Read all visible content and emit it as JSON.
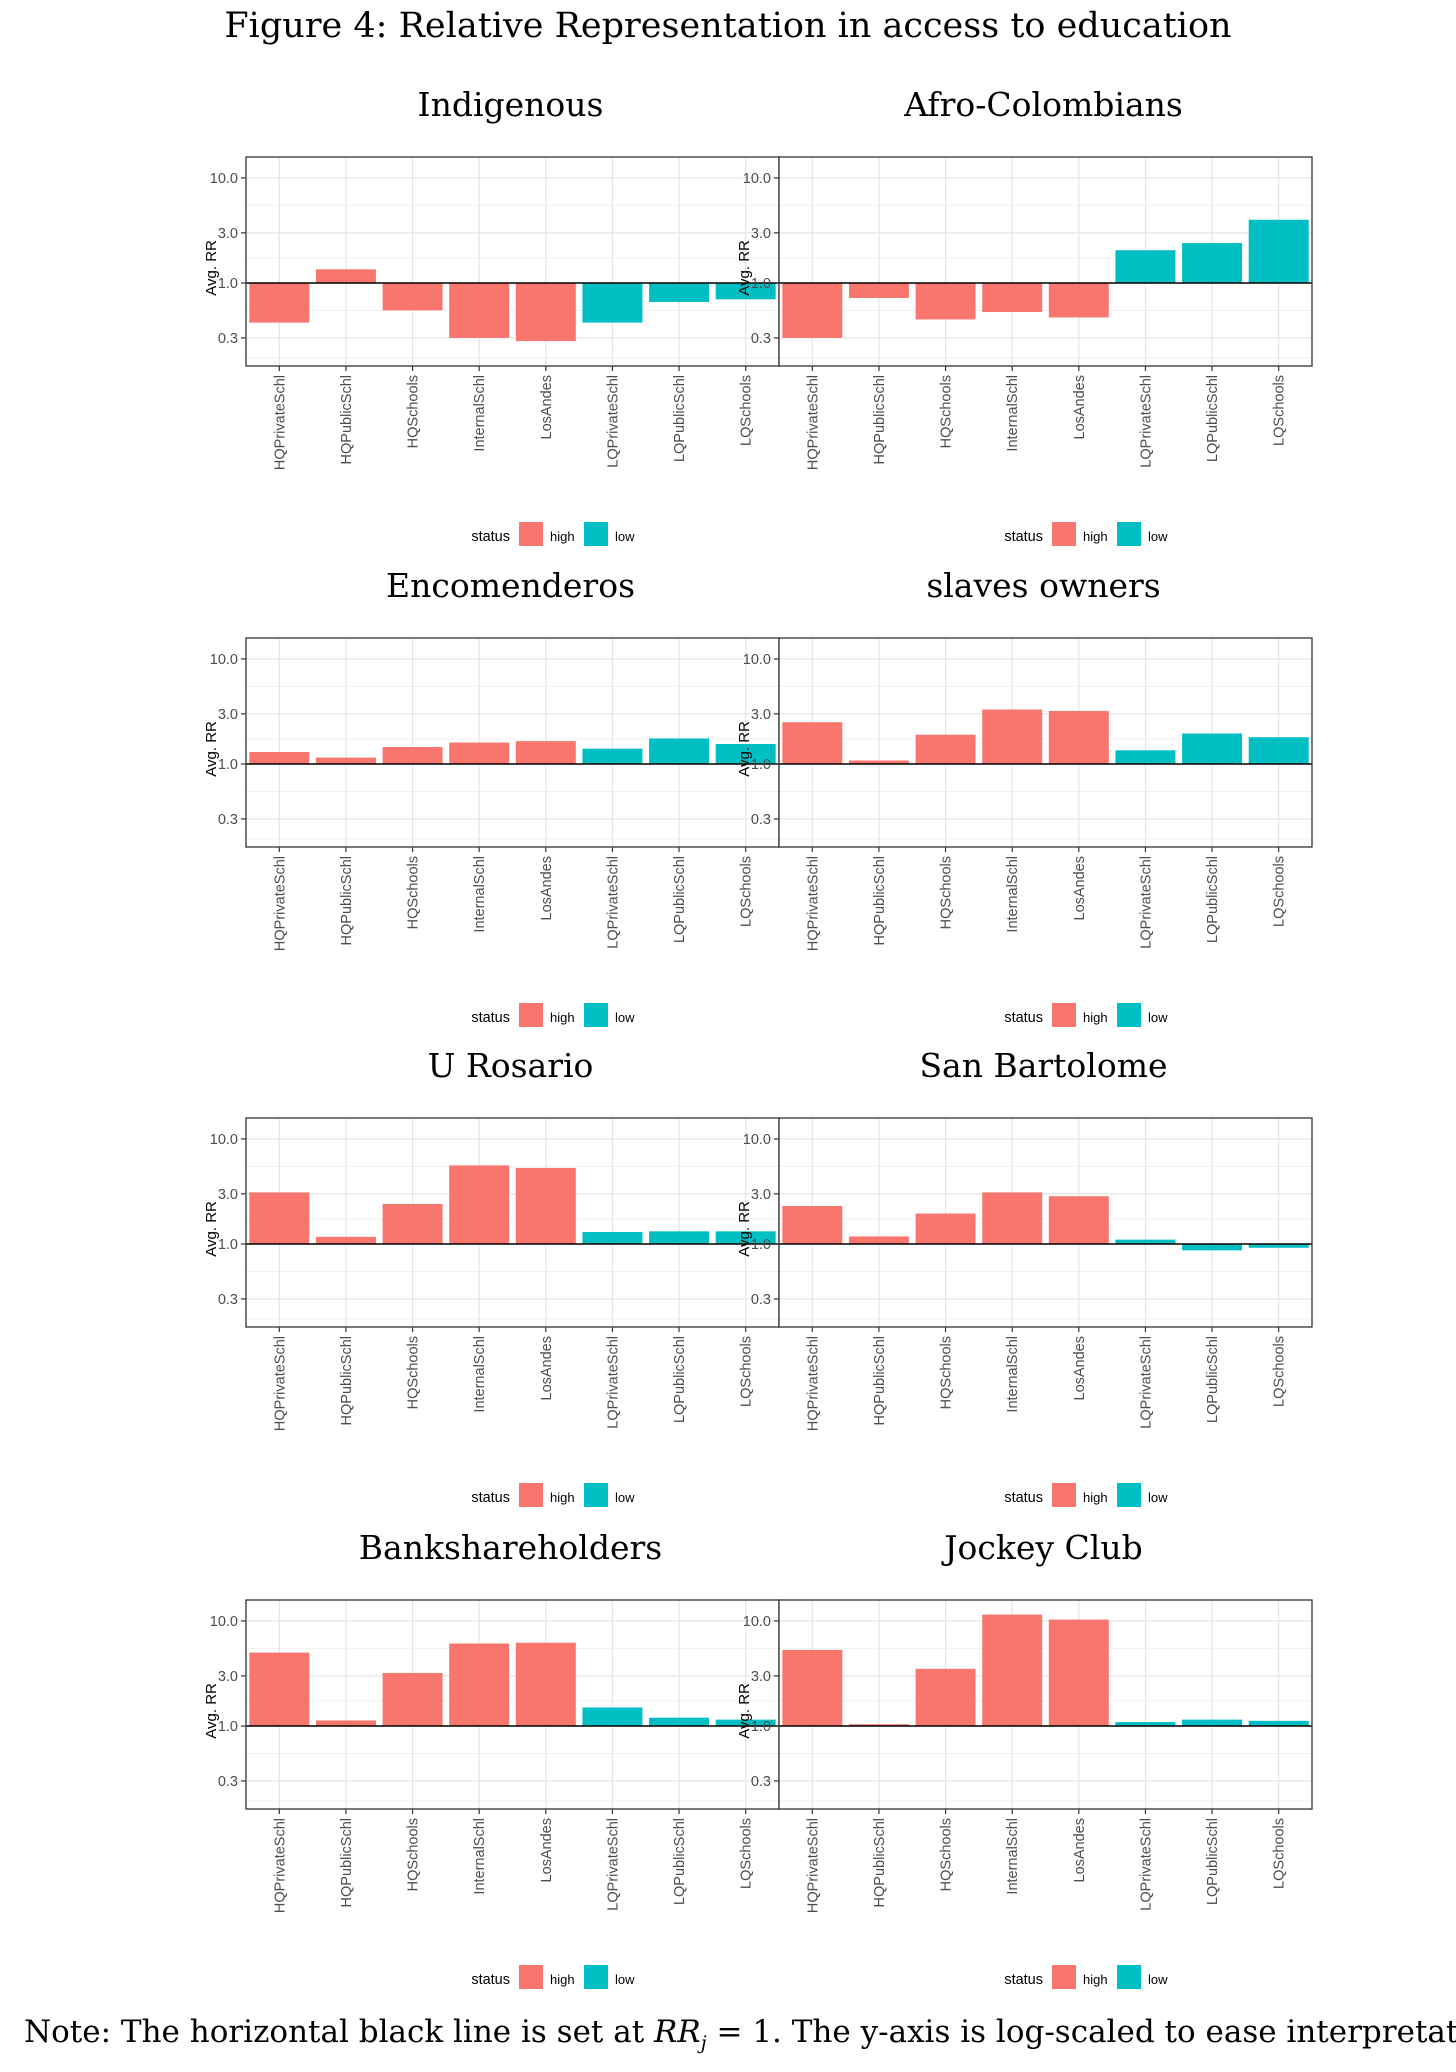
{
  "figure_title": "Figure 4:   Relative Representation in access to education",
  "note": {
    "prefix": "Note: The horizontal black line is set at ",
    "math_var": "RR",
    "math_sub": "j",
    "math_rest": " = 1.",
    "suffix": " The y-axis is log-scaled to ease interpretation."
  },
  "colors": {
    "high": "#F8766D",
    "low": "#00BFC4"
  },
  "chart_data": [
    {
      "type": "bar",
      "title": "Indigenous",
      "ylabel": "Avg. RR",
      "yscale": "log10",
      "ylim": [
        0.2,
        13
      ],
      "yticks": [
        "10.0",
        "3.0",
        "1.0",
        "0.3"
      ],
      "reference_line": 1.0,
      "categories": [
        "HQPrivateSchl",
        "HQPublicSchl",
        "HQSchools",
        "InternalSchl",
        "LosAndes",
        "LQPrivateSchl",
        "LQPublicSchl",
        "LQSchools"
      ],
      "status": [
        "high",
        "high",
        "high",
        "high",
        "high",
        "low",
        "low",
        "low"
      ],
      "values": [
        0.42,
        1.35,
        0.55,
        0.3,
        0.28,
        0.42,
        0.66,
        0.7
      ],
      "legend": {
        "title": "status",
        "entries": [
          "high",
          "low"
        ]
      }
    },
    {
      "type": "bar",
      "title": "Afro-Colombians",
      "ylabel": "Avg. RR",
      "yscale": "log10",
      "ylim": [
        0.2,
        13
      ],
      "yticks": [
        "10.0",
        "3.0",
        "1.0",
        "0.3"
      ],
      "reference_line": 1.0,
      "categories": [
        "HQPrivateSchl",
        "HQPublicSchl",
        "HQSchools",
        "InternalSchl",
        "LosAndes",
        "LQPrivateSchl",
        "LQPublicSchl",
        "LQSchools"
      ],
      "status": [
        "high",
        "high",
        "high",
        "high",
        "high",
        "low",
        "low",
        "low"
      ],
      "values": [
        0.3,
        0.72,
        0.45,
        0.53,
        0.47,
        2.05,
        2.4,
        4.0
      ],
      "legend": {
        "title": "status",
        "entries": [
          "high",
          "low"
        ]
      }
    },
    {
      "type": "bar",
      "title": "Encomenderos",
      "ylabel": "Avg. RR",
      "yscale": "log10",
      "ylim": [
        0.2,
        13
      ],
      "yticks": [
        "10.0",
        "3.0",
        "1.0",
        "0.3"
      ],
      "reference_line": 1.0,
      "categories": [
        "HQPrivateSchl",
        "HQPublicSchl",
        "HQSchools",
        "InternalSchl",
        "LosAndes",
        "LQPrivateSchl",
        "LQPublicSchl",
        "LQSchools"
      ],
      "status": [
        "high",
        "high",
        "high",
        "high",
        "high",
        "low",
        "low",
        "low"
      ],
      "values": [
        1.3,
        1.15,
        1.45,
        1.6,
        1.65,
        1.4,
        1.75,
        1.55
      ],
      "legend": {
        "title": "status",
        "entries": [
          "high",
          "low"
        ]
      }
    },
    {
      "type": "bar",
      "title": "slaves owners",
      "ylabel": "Avg. RR",
      "yscale": "log10",
      "ylim": [
        0.2,
        13
      ],
      "yticks": [
        "10.0",
        "3.0",
        "1.0",
        "0.3"
      ],
      "reference_line": 1.0,
      "categories": [
        "HQPrivateSchl",
        "HQPublicSchl",
        "HQSchools",
        "InternalSchl",
        "LosAndes",
        "LQPrivateSchl",
        "LQPublicSchl",
        "LQSchools"
      ],
      "status": [
        "high",
        "high",
        "high",
        "high",
        "high",
        "low",
        "low",
        "low"
      ],
      "values": [
        2.5,
        1.08,
        1.9,
        3.3,
        3.2,
        1.35,
        1.95,
        1.8
      ],
      "legend": {
        "title": "status",
        "entries": [
          "high",
          "low"
        ]
      }
    },
    {
      "type": "bar",
      "title": "U Rosario",
      "ylabel": "Avg. RR",
      "yscale": "log10",
      "ylim": [
        0.2,
        13
      ],
      "yticks": [
        "10.0",
        "3.0",
        "1.0",
        "0.3"
      ],
      "reference_line": 1.0,
      "categories": [
        "HQPrivateSchl",
        "HQPublicSchl",
        "HQSchools",
        "InternalSchl",
        "LosAndes",
        "LQPrivateSchl",
        "LQPublicSchl",
        "LQSchools"
      ],
      "status": [
        "high",
        "high",
        "high",
        "high",
        "high",
        "low",
        "low",
        "low"
      ],
      "values": [
        3.1,
        1.17,
        2.4,
        5.6,
        5.3,
        1.3,
        1.32,
        1.32
      ],
      "legend": {
        "title": "status",
        "entries": [
          "high",
          "low"
        ]
      }
    },
    {
      "type": "bar",
      "title": "San Bartolome",
      "ylabel": "Avg. RR",
      "yscale": "log10",
      "ylim": [
        0.2,
        13
      ],
      "yticks": [
        "10.0",
        "3.0",
        "1.0",
        "0.3"
      ],
      "reference_line": 1.0,
      "categories": [
        "HQPrivateSchl",
        "HQPublicSchl",
        "HQSchools",
        "InternalSchl",
        "LosAndes",
        "LQPrivateSchl",
        "LQPublicSchl",
        "LQSchools"
      ],
      "status": [
        "high",
        "high",
        "high",
        "high",
        "high",
        "low",
        "low",
        "low"
      ],
      "values": [
        2.3,
        1.18,
        1.95,
        3.1,
        2.85,
        1.1,
        0.87,
        0.92
      ],
      "legend": {
        "title": "status",
        "entries": [
          "high",
          "low"
        ]
      }
    },
    {
      "type": "bar",
      "title": "Bankshareholders",
      "ylabel": "Avg. RR",
      "yscale": "log10",
      "ylim": [
        0.2,
        13
      ],
      "yticks": [
        "10.0",
        "3.0",
        "1.0",
        "0.3"
      ],
      "reference_line": 1.0,
      "categories": [
        "HQPrivateSchl",
        "HQPublicSchl",
        "HQSchools",
        "InternalSchl",
        "LosAndes",
        "LQPrivateSchl",
        "LQPublicSchl",
        "LQSchools"
      ],
      "status": [
        "high",
        "high",
        "high",
        "high",
        "high",
        "low",
        "low",
        "low"
      ],
      "values": [
        5.0,
        1.13,
        3.2,
        6.1,
        6.2,
        1.5,
        1.2,
        1.15
      ],
      "legend": {
        "title": "status",
        "entries": [
          "high",
          "low"
        ]
      }
    },
    {
      "type": "bar",
      "title": "Jockey Club",
      "ylabel": "Avg. RR",
      "yscale": "log10",
      "ylim": [
        0.2,
        13
      ],
      "yticks": [
        "10.0",
        "3.0",
        "1.0",
        "0.3"
      ],
      "reference_line": 1.0,
      "categories": [
        "HQPrivateSchl",
        "HQPublicSchl",
        "HQSchools",
        "InternalSchl",
        "LosAndes",
        "LQPrivateSchl",
        "LQPublicSchl",
        "LQSchools"
      ],
      "status": [
        "high",
        "high",
        "high",
        "high",
        "high",
        "low",
        "low",
        "low"
      ],
      "values": [
        5.3,
        1.04,
        3.5,
        11.5,
        10.3,
        1.09,
        1.15,
        1.12
      ],
      "legend": {
        "title": "status",
        "entries": [
          "high",
          "low"
        ]
      }
    }
  ]
}
